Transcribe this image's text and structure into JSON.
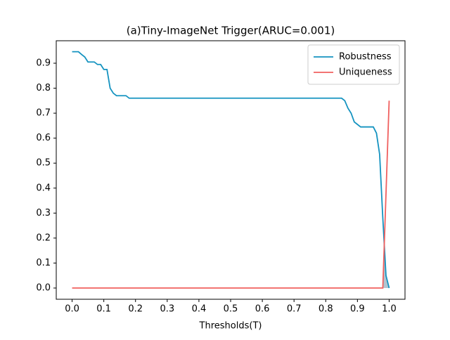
{
  "chart_data": {
    "type": "line",
    "title": "(a)Tiny-ImageNet Trigger(ARUC=0.001)",
    "x_label": "Thresholds(T)",
    "xlim": [
      -0.05,
      1.05
    ],
    "ylim": [
      -0.045,
      0.99
    ],
    "xticks": [
      {
        "value": 0,
        "label": "0.0"
      },
      0.1,
      0.2,
      0.3,
      0.4,
      0.5,
      0.6,
      0.7,
      0.8,
      0.9,
      {
        "value": 1,
        "label": "1.0"
      }
    ],
    "yticks": [
      {
        "value": 0,
        "label": "0.0"
      },
      0.1,
      0.2,
      0.3,
      0.4,
      0.5,
      0.6,
      0.7,
      0.8,
      0.9
    ],
    "legend": "upper right",
    "series": [
      {
        "name": "Robustness",
        "color": "#1593c0",
        "x": [
          0,
          0.02,
          0.03,
          0.04,
          0.05,
          0.07,
          0.08,
          0.09,
          0.1,
          0.11,
          0.12,
          0.13,
          0.14,
          0.17,
          0.18,
          0.85,
          0.86,
          0.87,
          0.88,
          0.89,
          0.9,
          0.91,
          0.95,
          0.96,
          0.97,
          0.98,
          0.99,
          1
        ],
        "values": [
          0.946,
          0.946,
          0.935,
          0.925,
          0.905,
          0.905,
          0.895,
          0.895,
          0.875,
          0.875,
          0.8,
          0.78,
          0.77,
          0.77,
          0.76,
          0.76,
          0.75,
          0.72,
          0.7,
          0.665,
          0.655,
          0.645,
          0.645,
          0.62,
          0.535,
          0.28,
          0.05,
          0
        ]
      },
      {
        "name": "Uniqueness",
        "color": "#f0605f",
        "x": [
          0,
          0.98,
          1
        ],
        "values": [
          0,
          0,
          0.75
        ]
      }
    ]
  }
}
